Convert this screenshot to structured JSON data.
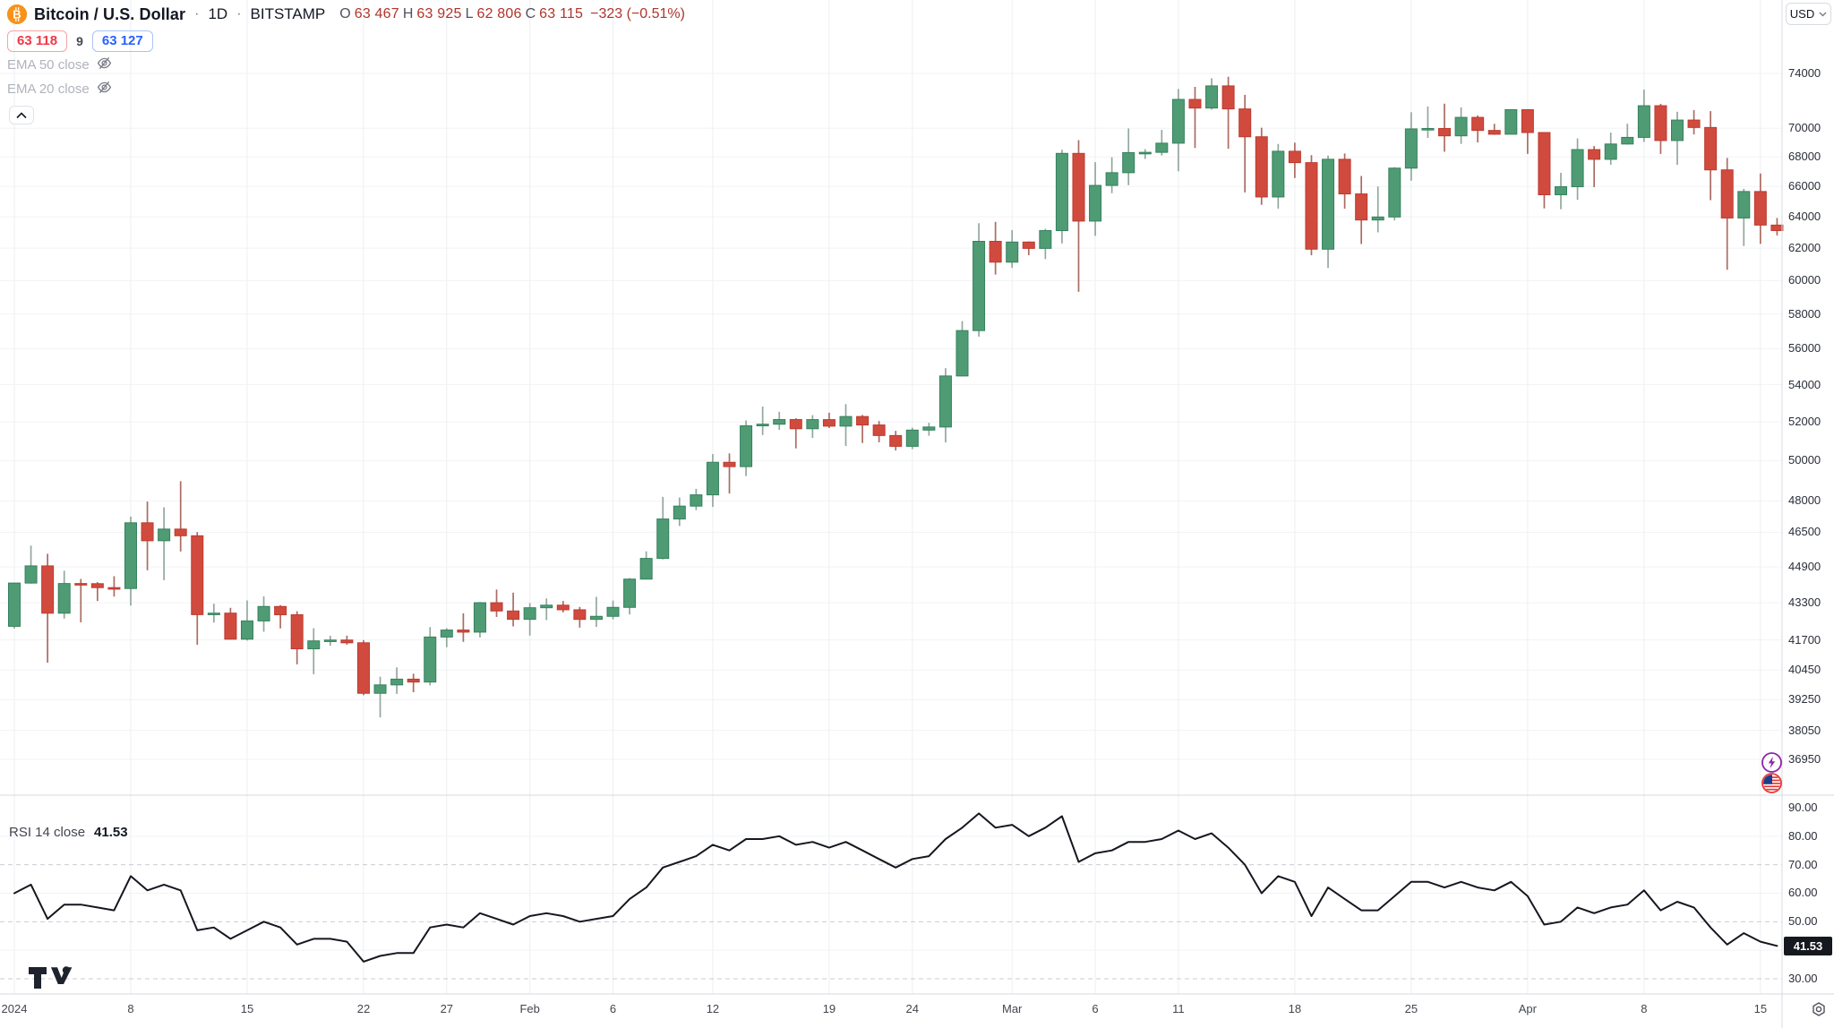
{
  "header": {
    "title": "Bitcoin / U.S. Dollar",
    "separator": "·",
    "timeframe": "1D",
    "exchange": "BITSTAMP",
    "ohlc": [
      {
        "k": "O",
        "v": "63 467"
      },
      {
        "k": "H",
        "v": "63 925"
      },
      {
        "k": "L",
        "v": "62 806"
      },
      {
        "k": "C",
        "v": "63 115"
      }
    ],
    "change": "−323 (−0.51%)",
    "bid": "63 118",
    "spread": "9",
    "ask": "63 127",
    "indicators": [
      {
        "label": "EMA 50 close"
      },
      {
        "label": "EMA 20 close"
      }
    ]
  },
  "price_axis": {
    "currency": "USD",
    "labels": [
      74000,
      70000,
      68000,
      66000,
      64000,
      62000,
      60000,
      58000,
      56000,
      54000,
      52000,
      50000,
      48000,
      46500,
      44900,
      43300,
      41700,
      40450,
      39250,
      38050,
      36950
    ]
  },
  "rsi_axis": {
    "labels": [
      "90.00",
      "80.00",
      "70.00",
      "60.00",
      "50.00",
      "40.00",
      "30.00"
    ],
    "value_badge": "41.53"
  },
  "rsi_panel": {
    "title": "RSI 14 close",
    "value": "41.53"
  },
  "time_axis": {
    "ticks": [
      {
        "label": "2024",
        "day": 0
      },
      {
        "label": "8",
        "day": 7
      },
      {
        "label": "15",
        "day": 14
      },
      {
        "label": "22",
        "day": 21
      },
      {
        "label": "27",
        "day": 26
      },
      {
        "label": "Feb",
        "day": 31
      },
      {
        "label": "6",
        "day": 36
      },
      {
        "label": "12",
        "day": 42
      },
      {
        "label": "19",
        "day": 49
      },
      {
        "label": "24",
        "day": 54
      },
      {
        "label": "Mar",
        "day": 60
      },
      {
        "label": "6",
        "day": 65
      },
      {
        "label": "11",
        "day": 70
      },
      {
        "label": "18",
        "day": 77
      },
      {
        "label": "25",
        "day": 84
      },
      {
        "label": "Apr",
        "day": 91
      },
      {
        "label": "8",
        "day": 98
      },
      {
        "label": "15",
        "day": 105
      }
    ]
  },
  "colors": {
    "up": "#4f9c74",
    "up_border": "#35815e",
    "up_wick": "#93a89d",
    "down": "#d04b3e",
    "down_border": "#bd3a2f",
    "down_wick": "#ab6c62",
    "rsi_line": "#15171f",
    "grid": "#f2f3f6",
    "vgrid": "#edeff2",
    "band_dashed": "#c9ccd4",
    "pane_border": "#d7dae0",
    "accent_red": "#f23645",
    "accent_blue": "#2962ff",
    "bitcoin_orange": "#f7931a",
    "badge_bg": "#16181f"
  },
  "chart_data": {
    "type": "candlestick",
    "symbol": "Bitcoin / U.S. Dollar",
    "interval": "1D",
    "exchange": "BITSTAMP",
    "scale": "log",
    "visible_price_range": [
      36950,
      79000
    ],
    "start_label": "2024",
    "last_close": 63115,
    "last_change": "−323 (−0.51%)",
    "candles_ohlc": [
      [
        42280,
        44184,
        42180,
        44172
      ],
      [
        44172,
        45879,
        44148,
        44946
      ],
      [
        44946,
        45500,
        40750,
        42845
      ],
      [
        42845,
        44729,
        42613,
        44151
      ],
      [
        44151,
        44357,
        42450,
        44145
      ],
      [
        44145,
        44216,
        43378,
        43968
      ],
      [
        43968,
        44480,
        43572,
        43929
      ],
      [
        43929,
        47248,
        43175,
        46951
      ],
      [
        46951,
        47972,
        44748,
        46106
      ],
      [
        46106,
        47695,
        44300,
        46653
      ],
      [
        46653,
        48969,
        45606,
        46338
      ],
      [
        46338,
        46515,
        41500,
        42782
      ],
      [
        42782,
        43257,
        42436,
        42847
      ],
      [
        42847,
        43079,
        41720,
        41732
      ],
      [
        41732,
        43400,
        41675,
        42511
      ],
      [
        42511,
        43578,
        42050,
        43137
      ],
      [
        43137,
        43198,
        42189,
        42776
      ],
      [
        42776,
        42930,
        40683,
        41327
      ],
      [
        41327,
        42196,
        40280,
        41659
      ],
      [
        41659,
        41875,
        41456,
        41696
      ],
      [
        41696,
        41881,
        41500,
        41580
      ],
      [
        41580,
        41689,
        39431,
        39507
      ],
      [
        39507,
        40176,
        38555,
        39845
      ],
      [
        39845,
        40555,
        39484,
        40077
      ],
      [
        40077,
        40300,
        39550,
        39961
      ],
      [
        39961,
        42246,
        39822,
        41823
      ],
      [
        41823,
        42200,
        41394,
        42120
      ],
      [
        42120,
        42842,
        41620,
        42031
      ],
      [
        42031,
        43333,
        41804,
        43302
      ],
      [
        43302,
        43882,
        42683,
        42941
      ],
      [
        42941,
        43745,
        42276,
        42580
      ],
      [
        42580,
        43285,
        41884,
        43082
      ],
      [
        43082,
        43488,
        42546,
        43194
      ],
      [
        43194,
        43379,
        42880,
        42993
      ],
      [
        42993,
        43119,
        42222,
        42577
      ],
      [
        42577,
        43560,
        42258,
        42709
      ],
      [
        42709,
        43399,
        42574,
        43098
      ],
      [
        43098,
        44396,
        42788,
        44349
      ],
      [
        44349,
        45614,
        44336,
        45288
      ],
      [
        45288,
        48200,
        45242,
        47132
      ],
      [
        47132,
        48170,
        46800,
        47751
      ],
      [
        47751,
        48592,
        47557,
        48299
      ],
      [
        48299,
        50334,
        47710,
        49917
      ],
      [
        49917,
        50368,
        48362,
        49699
      ],
      [
        49699,
        52079,
        49225,
        51795
      ],
      [
        51795,
        52816,
        51314,
        51880
      ],
      [
        51880,
        52537,
        51582,
        52124
      ],
      [
        52124,
        52191,
        50625,
        51642
      ],
      [
        51642,
        52356,
        51167,
        52122
      ],
      [
        52122,
        52488,
        51677,
        51779
      ],
      [
        51779,
        52945,
        50750,
        52284
      ],
      [
        52284,
        52368,
        50901,
        51839
      ],
      [
        51839,
        52047,
        50938,
        51288
      ],
      [
        51288,
        51533,
        50521,
        50731
      ],
      [
        50731,
        51698,
        50585,
        51571
      ],
      [
        51571,
        51955,
        51279,
        51733
      ],
      [
        51733,
        54910,
        50931,
        54476
      ],
      [
        54476,
        57584,
        54450,
        57037
      ],
      [
        57037,
        63585,
        56691,
        62432
      ],
      [
        62432,
        63676,
        60364,
        61130
      ],
      [
        61130,
        63151,
        60777,
        62387
      ],
      [
        62387,
        62433,
        61561,
        61987
      ],
      [
        61987,
        63231,
        61320,
        63113
      ],
      [
        63113,
        68499,
        62300,
        68245
      ],
      [
        68245,
        69170,
        59323,
        63724
      ],
      [
        63724,
        67641,
        62779,
        66068
      ],
      [
        66068,
        67980,
        65551,
        66925
      ],
      [
        66925,
        69990,
        66082,
        68300
      ],
      [
        68300,
        68541,
        67861,
        68318
      ],
      [
        68318,
        69887,
        68094,
        68955
      ],
      [
        68955,
        72850,
        67024,
        72078
      ],
      [
        72078,
        73000,
        68620,
        71452
      ],
      [
        71452,
        73637,
        71333,
        73072
      ],
      [
        73072,
        73750,
        68563,
        71388
      ],
      [
        71388,
        72419,
        65600,
        69403
      ],
      [
        69403,
        70043,
        64780,
        65300
      ],
      [
        65300,
        68904,
        64533,
        68393
      ],
      [
        68393,
        68990,
        66565,
        67609
      ],
      [
        67609,
        68124,
        61555,
        61937
      ],
      [
        61937,
        68100,
        60775,
        67840
      ],
      [
        67840,
        68240,
        64529,
        65501
      ],
      [
        65501,
        66705,
        62260,
        63796
      ],
      [
        63796,
        65999,
        63000,
        63990
      ],
      [
        63990,
        67300,
        63772,
        67234
      ],
      [
        67234,
        71150,
        66385,
        69958
      ],
      [
        69958,
        71561,
        69325,
        69988
      ],
      [
        69988,
        71769,
        68359,
        69469
      ],
      [
        69469,
        71500,
        68903,
        70780
      ],
      [
        70780,
        70916,
        69009,
        69850
      ],
      [
        69850,
        70321,
        69540,
        69582
      ],
      [
        69582,
        71366,
        69562,
        71333
      ],
      [
        71333,
        71342,
        68212,
        69702
      ],
      [
        69702,
        69708,
        64550,
        65446
      ],
      [
        65446,
        66914,
        64493,
        65980
      ],
      [
        65980,
        69291,
        65113,
        68508
      ],
      [
        68508,
        68756,
        65952,
        67837
      ],
      [
        67837,
        69692,
        67465,
        68896
      ],
      [
        68896,
        70326,
        68851,
        69360
      ],
      [
        69360,
        72797,
        69043,
        71620
      ],
      [
        71620,
        71758,
        68210,
        69139
      ],
      [
        69139,
        71184,
        67463,
        70587
      ],
      [
        70587,
        71305,
        69567,
        70060
      ],
      [
        70060,
        71227,
        65086,
        67116
      ],
      [
        67116,
        67929,
        60660,
        63924
      ],
      [
        63924,
        65840,
        62134,
        65661
      ],
      [
        65661,
        66867,
        62274,
        63467
      ],
      [
        63467,
        63925,
        62806,
        63115
      ]
    ],
    "rsi": {
      "type": "line",
      "name": "RSI 14 close",
      "period": 14,
      "last": 41.53,
      "range": [
        30,
        90
      ],
      "bands_dashed": [
        70,
        50,
        30
      ],
      "levels_solid": [
        80,
        60,
        40
      ],
      "values": [
        60,
        63,
        51,
        56,
        56,
        55,
        54,
        66,
        61,
        63,
        61,
        47,
        48,
        44,
        47,
        50,
        48,
        42,
        44,
        44,
        43,
        36,
        38,
        39,
        39,
        48,
        49,
        48,
        53,
        51,
        49,
        52,
        53,
        52,
        50,
        51,
        52,
        58,
        62,
        69,
        71,
        73,
        77,
        75,
        79,
        79,
        80,
        77,
        78,
        76,
        78,
        75,
        72,
        69,
        72,
        73,
        79,
        83,
        88,
        83,
        84,
        80,
        83,
        87,
        71,
        74,
        75,
        78,
        78,
        79,
        82,
        79,
        81,
        76,
        70,
        60,
        66,
        64,
        52,
        62,
        58,
        54,
        54,
        59,
        64,
        64,
        62,
        64,
        62,
        61,
        64,
        59,
        49,
        50,
        55,
        53,
        55,
        56,
        61,
        54,
        57,
        55,
        48,
        42,
        46,
        43,
        41.53
      ]
    }
  }
}
